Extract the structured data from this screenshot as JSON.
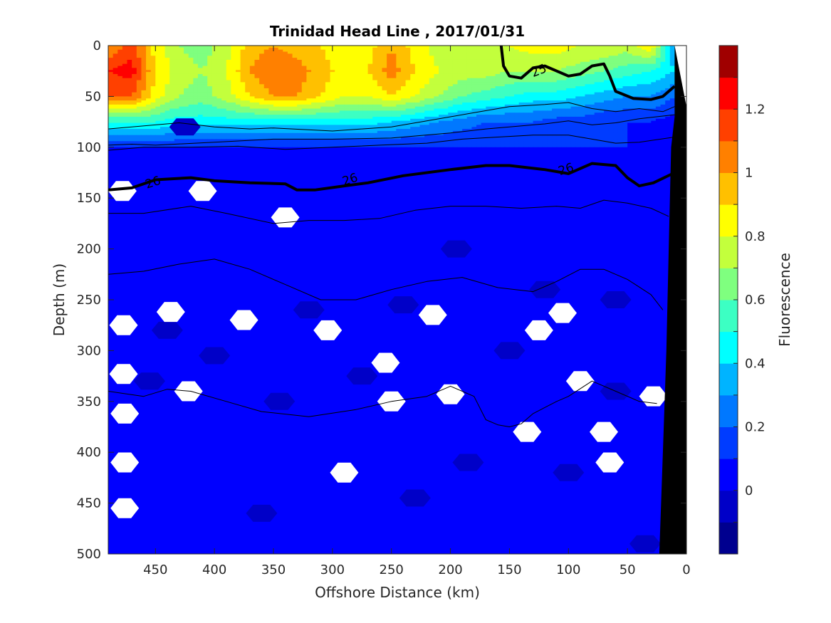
{
  "chart_data": {
    "type": "heatmap",
    "subtype": "filled-contour section with density contour overlay",
    "title": "Trinidad Head Line , 2017/01/31",
    "xlabel": "Offshore Distance (km)",
    "ylabel": "Depth (m)",
    "colorbar_label": "Fluorescence",
    "x_reversed": true,
    "y_reversed": true,
    "xlim": [
      490,
      0
    ],
    "ylim": [
      0,
      500
    ],
    "x_ticks": [
      "450",
      "400",
      "350",
      "300",
      "250",
      "200",
      "150",
      "100",
      "50",
      "0"
    ],
    "x_tick_values": [
      450,
      400,
      350,
      300,
      250,
      200,
      150,
      100,
      50,
      0
    ],
    "y_ticks": [
      "0",
      "50",
      "100",
      "150",
      "200",
      "250",
      "300",
      "350",
      "400",
      "450",
      "500"
    ],
    "y_tick_values": [
      0,
      50,
      100,
      150,
      200,
      250,
      300,
      350,
      400,
      450,
      500
    ],
    "colorbar": {
      "range": [
        -0.2,
        1.4
      ],
      "step": 0.1,
      "tick_labels": [
        "0",
        "0.2",
        "0.4",
        "0.6",
        "0.8",
        "1",
        "1.2"
      ],
      "tick_values": [
        0,
        0.2,
        0.4,
        0.6,
        0.8,
        1.0,
        1.2
      ],
      "colors": [
        "#00008f",
        "#0000c8",
        "#0000ff",
        "#003cff",
        "#0078ff",
        "#00b4ff",
        "#00ffff",
        "#3cffc3",
        "#7fff7f",
        "#c3ff3c",
        "#ffff00",
        "#ffc000",
        "#ff8000",
        "#ff4000",
        "#ff0000",
        "#a00000"
      ]
    },
    "fluorescence_grid": {
      "x": [
        490,
        470,
        450,
        430,
        410,
        390,
        370,
        350,
        330,
        310,
        290,
        270,
        250,
        230,
        210,
        190,
        170,
        150,
        130,
        110,
        90,
        70,
        50,
        30,
        10
      ],
      "depth": [
        0,
        25,
        50,
        75,
        100,
        150,
        200,
        300,
        500
      ],
      "values": [
        [
          1.0,
          1.15,
          0.85,
          0.7,
          0.65,
          0.75,
          0.95,
          1.0,
          0.95,
          0.9,
          0.8,
          0.85,
          1.0,
          0.85,
          0.75,
          0.7,
          0.75,
          0.8,
          0.85,
          0.85,
          0.8,
          0.8,
          0.75,
          0.9,
          0.3
        ],
        [
          1.2,
          1.25,
          0.9,
          0.75,
          0.7,
          0.8,
          1.0,
          1.1,
          1.05,
          0.95,
          0.85,
          0.9,
          1.05,
          0.9,
          0.8,
          0.75,
          0.75,
          0.7,
          0.7,
          0.7,
          0.65,
          0.6,
          0.55,
          0.5,
          0.4
        ],
        [
          1.1,
          1.1,
          0.85,
          0.7,
          0.65,
          0.75,
          0.9,
          1.0,
          1.0,
          0.9,
          0.8,
          0.8,
          0.9,
          0.8,
          0.7,
          0.6,
          0.55,
          0.5,
          0.45,
          0.45,
          0.4,
          0.35,
          0.3,
          0.3,
          0.2
        ],
        [
          0.5,
          0.5,
          0.5,
          0.45,
          0.45,
          0.45,
          0.45,
          0.45,
          0.45,
          0.45,
          0.45,
          0.45,
          0.4,
          0.35,
          0.3,
          0.25,
          0.2,
          0.2,
          0.2,
          0.15,
          0.15,
          0.1,
          0.1,
          0.1,
          0.05
        ],
        [
          0.1,
          0.1,
          0.1,
          0.1,
          0.1,
          0.1,
          0.1,
          0.1,
          0.1,
          0.1,
          0.1,
          0.1,
          0.1,
          0.1,
          0.1,
          0.1,
          0.1,
          0.1,
          0.1,
          0.1,
          0.1,
          0.1,
          0.1,
          0.05,
          0.05
        ],
        [
          0.05,
          0.05,
          0.05,
          0.05,
          0.05,
          0.05,
          0.05,
          0.05,
          0.05,
          0.05,
          0.05,
          0.05,
          0.05,
          0.05,
          0.05,
          0.05,
          0.05,
          0.05,
          0.05,
          0.05,
          0.05,
          0.05,
          0.05,
          0.05,
          0.05
        ],
        [
          0.05,
          0.05,
          0.05,
          0.05,
          0.05,
          0.05,
          0.05,
          0.05,
          0.05,
          0.05,
          0.05,
          0.05,
          0.05,
          0.05,
          0.05,
          0.05,
          0.05,
          0.05,
          0.05,
          0.05,
          0.05,
          0.05,
          0.05,
          0.05,
          0.05
        ],
        [
          0.05,
          0.05,
          0.05,
          0.05,
          0.05,
          0.05,
          0.05,
          0.05,
          0.05,
          0.05,
          0.05,
          0.05,
          0.05,
          0.05,
          0.05,
          0.05,
          0.05,
          0.05,
          0.05,
          0.05,
          0.05,
          0.05,
          0.05,
          0.05,
          0.05
        ],
        [
          0.05,
          0.05,
          0.05,
          0.05,
          0.05,
          0.05,
          0.05,
          0.05,
          0.05,
          0.05,
          0.05,
          0.05,
          0.05,
          0.05,
          0.05,
          0.05,
          0.05,
          0.05,
          0.05,
          0.05,
          0.05,
          0.05,
          0.05,
          0.05,
          0.05
        ]
      ]
    },
    "patches_low": [
      {
        "x": 425,
        "depth": 80
      },
      {
        "x": 440,
        "depth": 280
      },
      {
        "x": 455,
        "depth": 330
      },
      {
        "x": 400,
        "depth": 305
      },
      {
        "x": 360,
        "depth": 460
      },
      {
        "x": 320,
        "depth": 260
      },
      {
        "x": 275,
        "depth": 325
      },
      {
        "x": 240,
        "depth": 255
      },
      {
        "x": 230,
        "depth": 445
      },
      {
        "x": 185,
        "depth": 410
      },
      {
        "x": 150,
        "depth": 300
      },
      {
        "x": 120,
        "depth": 240
      },
      {
        "x": 100,
        "depth": 420
      },
      {
        "x": 60,
        "depth": 340
      },
      {
        "x": 60,
        "depth": 250
      },
      {
        "x": 35,
        "depth": 490
      },
      {
        "x": 195,
        "depth": 200
      },
      {
        "x": 345,
        "depth": 350
      }
    ],
    "missing_data_regions": [
      {
        "x": 478,
        "depth": 143
      },
      {
        "x": 477,
        "depth": 275
      },
      {
        "x": 477,
        "depth": 323
      },
      {
        "x": 476,
        "depth": 362
      },
      {
        "x": 476,
        "depth": 410
      },
      {
        "x": 476,
        "depth": 455
      },
      {
        "x": 437,
        "depth": 262
      },
      {
        "x": 422,
        "depth": 340
      },
      {
        "x": 410,
        "depth": 143
      },
      {
        "x": 340,
        "depth": 169
      },
      {
        "x": 375,
        "depth": 270
      },
      {
        "x": 304,
        "depth": 280
      },
      {
        "x": 290,
        "depth": 420
      },
      {
        "x": 255,
        "depth": 312
      },
      {
        "x": 250,
        "depth": 350
      },
      {
        "x": 215,
        "depth": 265
      },
      {
        "x": 200,
        "depth": 343
      },
      {
        "x": 125,
        "depth": 280
      },
      {
        "x": 105,
        "depth": 263
      },
      {
        "x": 135,
        "depth": 380
      },
      {
        "x": 90,
        "depth": 330
      },
      {
        "x": 70,
        "depth": 380
      },
      {
        "x": 65,
        "depth": 410
      },
      {
        "x": 28,
        "depth": 345
      }
    ],
    "density_contours": [
      {
        "label": "25",
        "bold": true,
        "points": [
          [
            157,
            0
          ],
          [
            155,
            20
          ],
          [
            150,
            30
          ],
          [
            140,
            32
          ],
          [
            130,
            22
          ],
          [
            120,
            20
          ],
          [
            110,
            25
          ],
          [
            100,
            30
          ],
          [
            90,
            28
          ],
          [
            80,
            20
          ],
          [
            70,
            18
          ],
          [
            65,
            30
          ],
          [
            60,
            45
          ],
          [
            45,
            52
          ],
          [
            30,
            53
          ],
          [
            20,
            50
          ],
          [
            10,
            40
          ]
        ]
      },
      {
        "label": "",
        "bold": false,
        "points": [
          [
            490,
            82
          ],
          [
            470,
            80
          ],
          [
            450,
            78
          ],
          [
            430,
            76
          ],
          [
            400,
            80
          ],
          [
            370,
            82
          ],
          [
            350,
            81
          ],
          [
            300,
            84
          ],
          [
            250,
            80
          ],
          [
            220,
            74
          ],
          [
            200,
            70
          ],
          [
            180,
            66
          ],
          [
            150,
            60
          ],
          [
            120,
            58
          ],
          [
            100,
            56
          ],
          [
            80,
            62
          ],
          [
            60,
            65
          ],
          [
            40,
            62
          ],
          [
            20,
            65
          ],
          [
            10,
            60
          ]
        ]
      },
      {
        "label": "",
        "bold": false,
        "points": [
          [
            490,
            98
          ],
          [
            470,
            97
          ],
          [
            450,
            98
          ],
          [
            400,
            95
          ],
          [
            350,
            92
          ],
          [
            300,
            92
          ],
          [
            250,
            91
          ],
          [
            200,
            86
          ],
          [
            170,
            82
          ],
          [
            150,
            80
          ],
          [
            120,
            77
          ],
          [
            100,
            74
          ],
          [
            80,
            78
          ],
          [
            60,
            76
          ],
          [
            40,
            72
          ],
          [
            10,
            68
          ]
        ]
      },
      {
        "label": "",
        "bold": false,
        "points": [
          [
            490,
            103
          ],
          [
            460,
            100
          ],
          [
            420,
            100
          ],
          [
            380,
            99
          ],
          [
            340,
            102
          ],
          [
            300,
            100
          ],
          [
            260,
            98
          ],
          [
            220,
            96
          ],
          [
            190,
            92
          ],
          [
            160,
            90
          ],
          [
            130,
            88
          ],
          [
            100,
            88
          ],
          [
            80,
            92
          ],
          [
            60,
            96
          ],
          [
            40,
            95
          ],
          [
            10,
            90
          ]
        ]
      },
      {
        "label": "26",
        "bold": true,
        "points": [
          [
            490,
            142
          ],
          [
            470,
            140
          ],
          [
            450,
            132
          ],
          [
            420,
            130
          ],
          [
            400,
            133
          ],
          [
            370,
            135
          ],
          [
            340,
            136
          ],
          [
            330,
            142
          ],
          [
            315,
            142
          ],
          [
            290,
            138
          ],
          [
            270,
            135
          ],
          [
            240,
            128
          ],
          [
            200,
            122
          ],
          [
            170,
            118
          ],
          [
            150,
            118
          ],
          [
            120,
            122
          ],
          [
            100,
            126
          ],
          [
            80,
            116
          ],
          [
            60,
            118
          ],
          [
            50,
            130
          ],
          [
            40,
            138
          ],
          [
            28,
            135
          ],
          [
            10,
            125
          ]
        ]
      },
      {
        "label": "",
        "bold": false,
        "points": [
          [
            490,
            165
          ],
          [
            460,
            165
          ],
          [
            420,
            158
          ],
          [
            390,
            165
          ],
          [
            350,
            175
          ],
          [
            320,
            172
          ],
          [
            290,
            172
          ],
          [
            260,
            170
          ],
          [
            230,
            162
          ],
          [
            200,
            158
          ],
          [
            170,
            158
          ],
          [
            140,
            160
          ],
          [
            110,
            158
          ],
          [
            90,
            160
          ],
          [
            70,
            152
          ],
          [
            50,
            155
          ],
          [
            30,
            160
          ],
          [
            15,
            168
          ]
        ]
      },
      {
        "label": "",
        "bold": false,
        "points": [
          [
            490,
            225
          ],
          [
            460,
            222
          ],
          [
            430,
            215
          ],
          [
            400,
            210
          ],
          [
            370,
            220
          ],
          [
            340,
            235
          ],
          [
            310,
            250
          ],
          [
            280,
            250
          ],
          [
            250,
            240
          ],
          [
            220,
            232
          ],
          [
            190,
            228
          ],
          [
            160,
            238
          ],
          [
            130,
            242
          ],
          [
            110,
            232
          ],
          [
            90,
            220
          ],
          [
            70,
            220
          ],
          [
            50,
            230
          ],
          [
            30,
            245
          ],
          [
            20,
            260
          ]
        ]
      },
      {
        "label": "",
        "bold": false,
        "points": [
          [
            490,
            340
          ],
          [
            460,
            345
          ],
          [
            440,
            338
          ],
          [
            420,
            340
          ],
          [
            390,
            350
          ],
          [
            360,
            360
          ],
          [
            320,
            365
          ],
          [
            280,
            358
          ],
          [
            250,
            350
          ],
          [
            220,
            345
          ],
          [
            200,
            335
          ],
          [
            180,
            345
          ],
          [
            170,
            368
          ],
          [
            160,
            373
          ],
          [
            150,
            375
          ],
          [
            140,
            372
          ],
          [
            130,
            362
          ],
          [
            110,
            350
          ],
          [
            100,
            345
          ],
          [
            80,
            330
          ],
          [
            60,
            340
          ],
          [
            40,
            350
          ],
          [
            25,
            352
          ]
        ]
      }
    ],
    "bathymetry": {
      "color": "black",
      "surface_x": 0,
      "points": [
        [
          0,
          0
        ],
        [
          10,
          0
        ],
        [
          10,
          70
        ],
        [
          13,
          100
        ],
        [
          15,
          200
        ],
        [
          17,
          300
        ],
        [
          20,
          400
        ],
        [
          23,
          500
        ],
        [
          0,
          500
        ]
      ]
    }
  }
}
